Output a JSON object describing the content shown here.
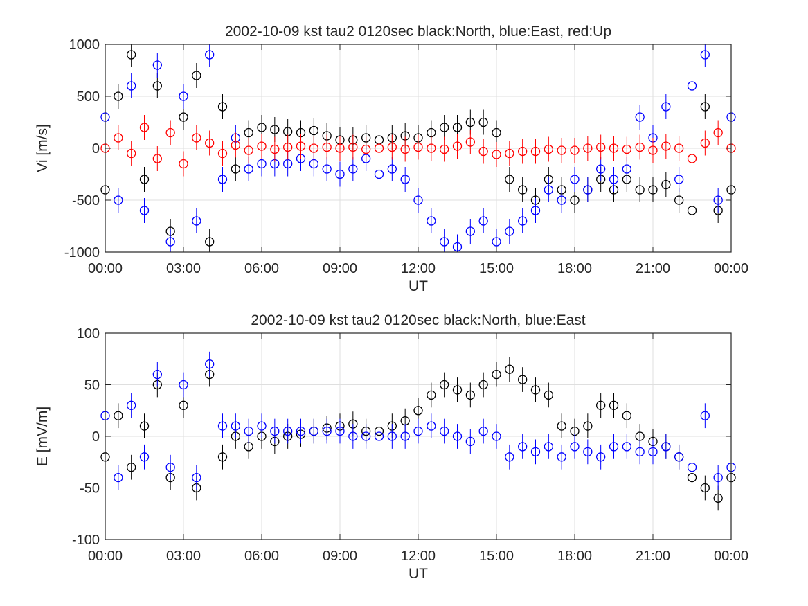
{
  "chart_data": [
    {
      "type": "scatter",
      "title": "2002-10-09 kst tau2 0120sec black:North, blue:East, red:Up",
      "xlabel": "UT",
      "ylabel": "Vi [m/s]",
      "xlim": [
        0,
        24
      ],
      "ylim": [
        -1000,
        1000
      ],
      "xticks": [
        "00:00",
        "03:00",
        "06:00",
        "09:00",
        "12:00",
        "15:00",
        "18:00",
        "21:00",
        "00:00"
      ],
      "yticks": [
        "-1000",
        "-500",
        "0",
        "500",
        "1000"
      ],
      "grid": true,
      "marker": "circle with vertical error bar",
      "series": [
        {
          "color": "#000000",
          "x": [
            0.0,
            0.5,
            1.0,
            1.5,
            2.0,
            2.5,
            3.0,
            3.5,
            4.0,
            4.5,
            5.0,
            5.5,
            6.0,
            6.5,
            7.0,
            7.5,
            8.0,
            8.5,
            9.0,
            9.5,
            10.0,
            10.5,
            11.0,
            11.5,
            12.0,
            12.5,
            13.0,
            13.5,
            14.0,
            14.5,
            15.0,
            15.5,
            16.0,
            16.5,
            17.0,
            17.5,
            18.0,
            18.5,
            19.0,
            19.5,
            20.0,
            20.5,
            21.0,
            21.5,
            22.0,
            22.5,
            23.0,
            23.5,
            24.0
          ],
          "y": [
            -400,
            500,
            900,
            -300,
            600,
            -800,
            300,
            700,
            -900,
            400,
            -200,
            150,
            200,
            180,
            160,
            150,
            170,
            120,
            80,
            80,
            100,
            80,
            100,
            120,
            100,
            150,
            200,
            200,
            250,
            250,
            150,
            -300,
            -400,
            -500,
            -300,
            -400,
            -500,
            -400,
            -300,
            -400,
            -300,
            -400,
            -400,
            -350,
            -500,
            -600,
            400,
            -600,
            -400
          ]
        },
        {
          "color": "#0000ff",
          "x": [
            0.0,
            0.5,
            1.0,
            1.5,
            2.0,
            2.5,
            3.0,
            3.5,
            4.0,
            4.5,
            5.0,
            5.5,
            6.0,
            6.5,
            7.0,
            7.5,
            8.0,
            8.5,
            9.0,
            9.5,
            10.0,
            10.5,
            11.0,
            11.5,
            12.0,
            12.5,
            13.0,
            13.5,
            14.0,
            14.5,
            15.0,
            15.5,
            16.0,
            16.5,
            17.0,
            17.5,
            18.0,
            18.5,
            19.0,
            19.5,
            20.0,
            20.5,
            21.0,
            21.5,
            22.0,
            22.5,
            23.0,
            23.5,
            24.0
          ],
          "y": [
            300,
            -500,
            600,
            -600,
            800,
            -900,
            500,
            -700,
            900,
            -300,
            100,
            -200,
            -150,
            -150,
            -150,
            -100,
            -150,
            -200,
            -250,
            -200,
            -100,
            -250,
            -200,
            -300,
            -500,
            -700,
            -900,
            -950,
            -800,
            -700,
            -900,
            -800,
            -700,
            -600,
            -400,
            -500,
            -300,
            -400,
            -200,
            -300,
            -200,
            300,
            100,
            400,
            -300,
            600,
            900,
            -500,
            300
          ]
        },
        {
          "color": "#ff0000",
          "x": [
            0.0,
            0.5,
            1.0,
            1.5,
            2.0,
            2.5,
            3.0,
            3.5,
            4.0,
            4.5,
            5.0,
            5.5,
            6.0,
            6.5,
            7.0,
            7.5,
            8.0,
            8.5,
            9.0,
            9.5,
            10.0,
            10.5,
            11.0,
            11.5,
            12.0,
            12.5,
            13.0,
            13.5,
            14.0,
            14.5,
            15.0,
            15.5,
            16.0,
            16.5,
            17.0,
            17.5,
            18.0,
            18.5,
            19.0,
            19.5,
            20.0,
            20.5,
            21.0,
            21.5,
            22.0,
            22.5,
            23.0,
            23.5,
            24.0
          ],
          "y": [
            0,
            100,
            -50,
            200,
            -100,
            150,
            -150,
            100,
            50,
            -50,
            30,
            -20,
            20,
            -10,
            10,
            20,
            0,
            10,
            0,
            10,
            -10,
            0,
            10,
            -10,
            10,
            0,
            -10,
            20,
            60,
            -30,
            -60,
            -50,
            -30,
            -30,
            -10,
            -20,
            -20,
            0,
            10,
            0,
            -10,
            10,
            -20,
            20,
            0,
            -100,
            50,
            150,
            0
          ]
        }
      ]
    },
    {
      "type": "scatter",
      "title": "2002-10-09 kst tau2 0120sec black:North, blue:East",
      "xlabel": "UT",
      "ylabel": "E [mV/m]",
      "xlim": [
        0,
        24
      ],
      "ylim": [
        -100,
        100
      ],
      "xticks": [
        "00:00",
        "03:00",
        "06:00",
        "09:00",
        "12:00",
        "15:00",
        "18:00",
        "21:00",
        "00:00"
      ],
      "yticks": [
        "-100",
        "-50",
        "0",
        "50",
        "100"
      ],
      "grid": true,
      "marker": "circle with vertical error bar",
      "series": [
        {
          "color": "#000000",
          "x": [
            0.0,
            0.5,
            1.0,
            1.5,
            2.0,
            2.5,
            3.0,
            3.5,
            4.0,
            4.5,
            5.0,
            5.5,
            6.0,
            6.5,
            7.0,
            7.5,
            8.0,
            8.5,
            9.0,
            9.5,
            10.0,
            10.5,
            11.0,
            11.5,
            12.0,
            12.5,
            13.0,
            13.5,
            14.0,
            14.5,
            15.0,
            15.5,
            16.0,
            16.5,
            17.0,
            17.5,
            18.0,
            18.5,
            19.0,
            19.5,
            20.0,
            20.5,
            21.0,
            21.5,
            22.0,
            22.5,
            23.0,
            23.5,
            24.0
          ],
          "y": [
            -20,
            20,
            -30,
            10,
            50,
            -40,
            30,
            -50,
            60,
            -20,
            0,
            -10,
            0,
            -5,
            0,
            2,
            5,
            8,
            10,
            12,
            5,
            5,
            10,
            15,
            25,
            40,
            50,
            45,
            40,
            50,
            60,
            65,
            55,
            45,
            40,
            10,
            5,
            10,
            30,
            30,
            20,
            0,
            -5,
            -10,
            -20,
            -40,
            -50,
            -60,
            -40
          ]
        },
        {
          "color": "#0000ff",
          "x": [
            0.0,
            0.5,
            1.0,
            1.5,
            2.0,
            2.5,
            3.0,
            3.5,
            4.0,
            4.5,
            5.0,
            5.5,
            6.0,
            6.5,
            7.0,
            7.5,
            8.0,
            8.5,
            9.0,
            9.5,
            10.0,
            10.5,
            11.0,
            11.5,
            12.0,
            12.5,
            13.0,
            13.5,
            14.0,
            14.5,
            15.0,
            15.5,
            16.0,
            16.5,
            17.0,
            17.5,
            18.0,
            18.5,
            19.0,
            19.5,
            20.0,
            20.5,
            21.0,
            21.5,
            22.0,
            22.5,
            23.0,
            23.5,
            24.0
          ],
          "y": [
            20,
            -40,
            30,
            -20,
            60,
            -30,
            50,
            -40,
            70,
            10,
            10,
            5,
            10,
            5,
            5,
            5,
            5,
            5,
            5,
            0,
            0,
            0,
            0,
            0,
            5,
            10,
            5,
            0,
            -5,
            5,
            0,
            -20,
            -10,
            -15,
            -10,
            -20,
            -10,
            -15,
            -20,
            -10,
            -10,
            -15,
            -15,
            -10,
            -20,
            -30,
            20,
            -40,
            -30
          ]
        }
      ]
    }
  ]
}
